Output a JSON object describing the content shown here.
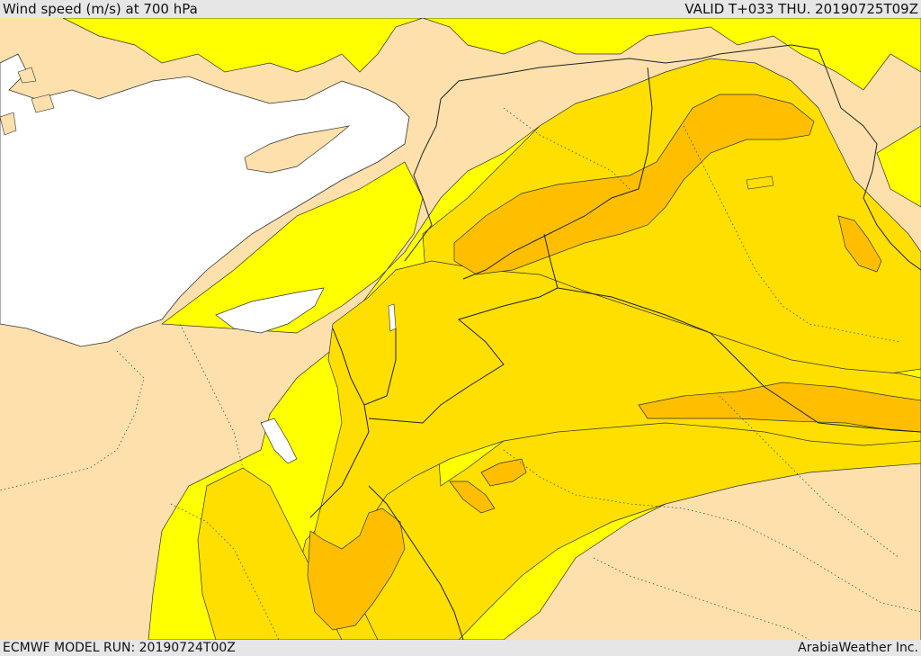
{
  "header": {
    "title": "Wind speed (m/s) at 700 hPa",
    "valid": "VALID T+033 THU. 20190725T09Z"
  },
  "footer": {
    "model_run": "ECMWF MODEL RUN: 20190724T00Z",
    "credit": "ArabiaWeather Inc."
  },
  "colors": {
    "land_low": "#fde0ab",
    "band_1": "#ffff00",
    "band_2": "#ffdf00",
    "band_3": "#ffbf00",
    "sea": "#ffffff",
    "border": "#222222"
  }
}
